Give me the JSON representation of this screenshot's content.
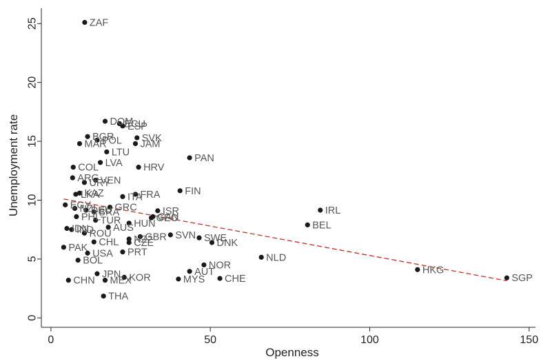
{
  "chart_data": {
    "type": "scatter",
    "title": "",
    "xlabel": "Openness",
    "ylabel": "Unemployment rate",
    "xlim": [
      -3,
      152
    ],
    "ylim": [
      -0.8,
      26.3
    ],
    "xticks": [
      "0",
      "50",
      "100",
      "150"
    ],
    "yticks": [
      "0",
      "5",
      "10",
      "15",
      "20",
      "25"
    ],
    "grid": false,
    "legend": "none",
    "point_color": "#1a1a1a",
    "trendline_color": "#dd2222",
    "trendline": {
      "x": [
        4,
        143
      ],
      "y": [
        10.1,
        3.15
      ]
    },
    "points": [
      {
        "label": "ZAF",
        "x": 10.6,
        "y": 25.1
      },
      {
        "label": "DOM",
        "x": 17,
        "y": 16.7
      },
      {
        "label": "ECU",
        "x": 21.5,
        "y": 16.5
      },
      {
        "label": "ESP",
        "x": 22.5,
        "y": 16.3
      },
      {
        "label": "BGR",
        "x": 11.5,
        "y": 15.4
      },
      {
        "label": "POL",
        "x": 14.5,
        "y": 15.1
      },
      {
        "label": "MAR",
        "x": 9,
        "y": 14.8
      },
      {
        "label": "SVK",
        "x": 27,
        "y": 15.3
      },
      {
        "label": "JAM",
        "x": 26.5,
        "y": 14.8
      },
      {
        "label": "LTU",
        "x": 17.5,
        "y": 14.1
      },
      {
        "label": "PAN",
        "x": 43.5,
        "y": 13.6
      },
      {
        "label": "LVA",
        "x": 15.5,
        "y": 13.2
      },
      {
        "label": "HRV",
        "x": 27.5,
        "y": 12.8
      },
      {
        "label": "COL",
        "x": 7,
        "y": 12.8
      },
      {
        "label": "ARG",
        "x": 6.8,
        "y": 11.9
      },
      {
        "label": "VEN",
        "x": 14,
        "y": 11.7
      },
      {
        "label": "URY",
        "x": 10.5,
        "y": 11.5
      },
      {
        "label": "FIN",
        "x": 40.5,
        "y": 10.8
      },
      {
        "label": "FRA",
        "x": 26.5,
        "y": 10.5
      },
      {
        "label": "ITA",
        "x": 22.5,
        "y": 10.3
      },
      {
        "label": "LKA",
        "x": 7.8,
        "y": 10.5
      },
      {
        "label": "KAZ",
        "x": 9,
        "y": 10.6
      },
      {
        "label": "EGY",
        "x": 4.5,
        "y": 9.6
      },
      {
        "label": "GRC",
        "x": 18.5,
        "y": 9.4
      },
      {
        "label": "IRL",
        "x": 84.5,
        "y": 9.15
      },
      {
        "label": "NZL",
        "x": 7.5,
        "y": 9.3
      },
      {
        "label": "DEU",
        "x": 11,
        "y": 9.15
      },
      {
        "label": "BRA",
        "x": 13.5,
        "y": 9.0
      },
      {
        "label": "ISR",
        "x": 33.5,
        "y": 9.1
      },
      {
        "label": "CAN",
        "x": 32,
        "y": 8.6
      },
      {
        "label": "GEO",
        "x": 31.5,
        "y": 8.5
      },
      {
        "label": "PHL",
        "x": 8,
        "y": 8.6
      },
      {
        "label": "TUR",
        "x": 14,
        "y": 8.3
      },
      {
        "label": "HUN",
        "x": 24.5,
        "y": 8.05
      },
      {
        "label": "BEL",
        "x": 80.5,
        "y": 7.9
      },
      {
        "label": "AUS",
        "x": 18,
        "y": 7.7
      },
      {
        "label": "IDN",
        "x": 5,
        "y": 7.6
      },
      {
        "label": "IND",
        "x": 6.5,
        "y": 7.5
      },
      {
        "label": "ROU",
        "x": 10.5,
        "y": 7.2
      },
      {
        "label": "SVN",
        "x": 37.5,
        "y": 7.05
      },
      {
        "label": "GBR",
        "x": 28,
        "y": 6.9
      },
      {
        "label": "NZ2",
        "x": 24.5,
        "y": 6.7
      },
      {
        "label": "SWE",
        "x": 46.5,
        "y": 6.8
      },
      {
        "label": "CZE",
        "x": 24.5,
        "y": 6.4
      },
      {
        "label": "CHL",
        "x": 13.5,
        "y": 6.45
      },
      {
        "label": "DNK",
        "x": 50.5,
        "y": 6.4
      },
      {
        "label": "PAK",
        "x": 4,
        "y": 6.0
      },
      {
        "label": "PRT",
        "x": 22.5,
        "y": 5.6
      },
      {
        "label": "USA",
        "x": 11.5,
        "y": 5.5
      },
      {
        "label": "NLD",
        "x": 66,
        "y": 5.15
      },
      {
        "label": "BOL",
        "x": 8.5,
        "y": 4.9
      },
      {
        "label": "NOR",
        "x": 48,
        "y": 4.5
      },
      {
        "label": "HKG",
        "x": 115,
        "y": 4.1
      },
      {
        "label": "AUT",
        "x": 43.5,
        "y": 3.95
      },
      {
        "label": "JPN",
        "x": 14.5,
        "y": 3.75
      },
      {
        "label": "KOR",
        "x": 23,
        "y": 3.45
      },
      {
        "label": "MYS",
        "x": 40,
        "y": 3.3
      },
      {
        "label": "CHE",
        "x": 53,
        "y": 3.35
      },
      {
        "label": "SGP",
        "x": 143,
        "y": 3.4
      },
      {
        "label": "CHN",
        "x": 5.5,
        "y": 3.2
      },
      {
        "label": "MEX",
        "x": 17,
        "y": 3.2
      },
      {
        "label": "THA",
        "x": 16.5,
        "y": 1.85
      }
    ]
  }
}
